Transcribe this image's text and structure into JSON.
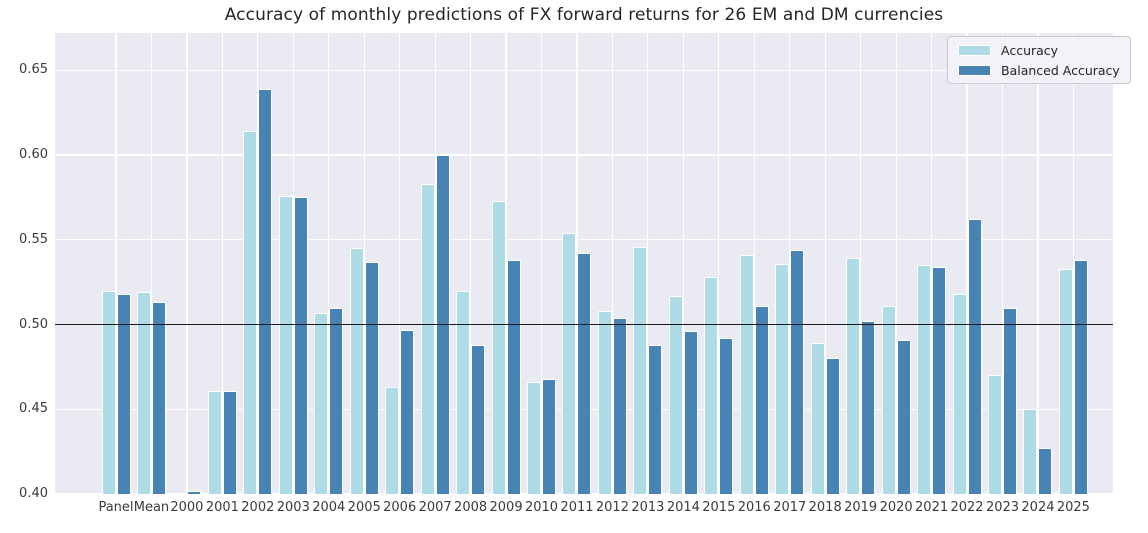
{
  "chart_data": {
    "type": "bar",
    "title": "Accuracy of monthly predictions of FX forward returns for 26 EM and DM currencies",
    "categories": [
      "Panel",
      "Mean",
      "2000",
      "2001",
      "2002",
      "2003",
      "2004",
      "2005",
      "2006",
      "2007",
      "2008",
      "2009",
      "2010",
      "2011",
      "2012",
      "2013",
      "2014",
      "2015",
      "2016",
      "2017",
      "2018",
      "2019",
      "2020",
      "2021",
      "2022",
      "2023",
      "2024",
      "2025"
    ],
    "series": [
      {
        "name": "Accuracy",
        "color": "#addbe6",
        "values": [
          0.52,
          0.519,
          null,
          0.461,
          0.614,
          0.576,
          0.507,
          0.545,
          0.463,
          0.583,
          0.52,
          0.573,
          0.466,
          0.554,
          0.508,
          0.546,
          0.517,
          0.528,
          0.541,
          0.536,
          0.489,
          0.539,
          0.511,
          0.535,
          0.518,
          0.47,
          0.45,
          0.533
        ]
      },
      {
        "name": "Balanced Accuracy",
        "color": "#4784b4",
        "values": [
          0.518,
          0.513,
          0.402,
          0.461,
          0.639,
          0.575,
          0.51,
          0.537,
          0.497,
          0.6,
          0.488,
          0.538,
          0.468,
          0.542,
          0.504,
          0.488,
          0.496,
          0.492,
          0.511,
          0.544,
          0.48,
          0.502,
          0.491,
          0.534,
          0.562,
          0.51,
          0.427,
          0.538
        ]
      }
    ],
    "note": "2000 Accuracy bar is below the visible axis minimum of 0.40",
    "ylim": [
      0.4,
      0.672
    ],
    "yticks": [
      0.4,
      0.45,
      0.5,
      0.55,
      0.6,
      0.65
    ],
    "ytick_labels": [
      "0.40",
      "0.45",
      "0.50",
      "0.55",
      "0.60",
      "0.65"
    ],
    "reference_line": 0.5,
    "grid": true,
    "legend_position": "upper right"
  },
  "legend": {
    "items": [
      {
        "label": "Accuracy",
        "color": "#addbe6"
      },
      {
        "label": "Balanced Accuracy",
        "color": "#4784b4"
      }
    ]
  },
  "colors": {
    "plot_background": "#eaeaf2",
    "gridline": "#ffffff",
    "reference_line": "#1a1a1a",
    "title_text": "#262626",
    "tick_text": "#3a3a3a"
  }
}
